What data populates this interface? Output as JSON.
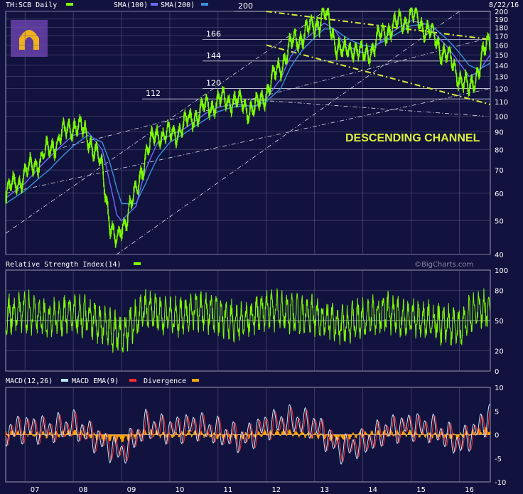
{
  "header": {
    "ticker": "TH:SCB Daily",
    "sma100": "SMA(100)",
    "sma200": "SMA(200)",
    "date": "8/22/16"
  },
  "rsi_label": "Relative Strength Index(14)",
  "macd_labels": {
    "macd": "MACD(12,26)",
    "ema": "MACD EMA(9)",
    "div": "Divergence"
  },
  "watermark": "©BigCharts.com",
  "annotation": "DESCENDING CHANNEL",
  "colors": {
    "bg": "#12123e",
    "price": "#7cfc00",
    "sma100": "#6a6cff",
    "sma200": "#3a8fe0",
    "rsi": "#7cfc00",
    "macd": "#b9e8ff",
    "ema": "#ff2a2a",
    "div": "#ffa500",
    "channel": "#dcee3a"
  },
  "chart_data": [
    {
      "type": "line",
      "title": "TH:SCB Daily",
      "x": [
        2006.6,
        2007,
        2007.5,
        2008,
        2008.3,
        2008.6,
        2008.75,
        2008.9,
        2009,
        2009.3,
        2009.5,
        2009.75,
        2010,
        2010.3,
        2010.5,
        2010.75,
        2011,
        2011.3,
        2011.5,
        2011.75,
        2012,
        2012.3,
        2012.5,
        2012.75,
        2013,
        2013.2,
        2013.4,
        2013.6,
        2013.8,
        2014,
        2014.2,
        2014.5,
        2014.75,
        2015,
        2015.3,
        2015.5,
        2015.75,
        2016,
        2016.2,
        2016.4,
        2016.64
      ],
      "xticks": [
        "07",
        "08",
        "09",
        "10",
        "11",
        "12",
        "13",
        "14",
        "15",
        "16"
      ],
      "series": [
        {
          "name": "TH:SCB Daily",
          "values": [
            60,
            68,
            80,
            95,
            88,
            70,
            50,
            42,
            48,
            60,
            78,
            90,
            88,
            94,
            100,
            106,
            110,
            112,
            108,
            104,
            118,
            140,
            160,
            172,
            182,
            198,
            168,
            150,
            160,
            148,
            158,
            178,
            185,
            195,
            180,
            165,
            148,
            130,
            118,
            138,
            168
          ]
        },
        {
          "name": "SMA(100)",
          "values": [
            58,
            64,
            76,
            88,
            90,
            80,
            65,
            52,
            50,
            55,
            70,
            84,
            88,
            92,
            96,
            102,
            106,
            108,
            108,
            106,
            112,
            128,
            148,
            164,
            175,
            185,
            178,
            162,
            156,
            152,
            156,
            170,
            180,
            188,
            184,
            172,
            158,
            142,
            130,
            134,
            150
          ]
        },
        {
          "name": "SMA(200)",
          "values": [
            56,
            61,
            70,
            82,
            88,
            84,
            74,
            62,
            56,
            56,
            64,
            76,
            84,
            89,
            93,
            98,
            103,
            106,
            107,
            107,
            110,
            120,
            138,
            155,
            168,
            178,
            178,
            170,
            164,
            160,
            158,
            166,
            174,
            182,
            184,
            178,
            166,
            152,
            140,
            136,
            142
          ]
        }
      ],
      "yticks": [
        40,
        50,
        60,
        70,
        80,
        90,
        100,
        110,
        120,
        130,
        140,
        150,
        160,
        170,
        180,
        190,
        200
      ],
      "ylim": [
        40,
        200
      ],
      "yscale": "log",
      "levels": [
        200,
        166,
        144,
        120,
        112
      ]
    },
    {
      "type": "line",
      "title": "Relative Strength Index(14)",
      "x": [
        2006.6,
        2007,
        2007.5,
        2008,
        2008.5,
        2009,
        2009.5,
        2010,
        2010.5,
        2011,
        2011.5,
        2012,
        2012.5,
        2013,
        2013.5,
        2014,
        2014.5,
        2015,
        2015.5,
        2016,
        2016.3,
        2016.64
      ],
      "series": [
        {
          "name": "Relative Strength Index(14)",
          "values": [
            55,
            60,
            50,
            58,
            48,
            35,
            62,
            52,
            60,
            55,
            48,
            62,
            58,
            55,
            45,
            52,
            58,
            50,
            48,
            42,
            60,
            62
          ]
        }
      ],
      "yticks": [
        0,
        20,
        50,
        80,
        100
      ],
      "ylim": [
        0,
        100
      ]
    },
    {
      "type": "line",
      "title": "MACD(12,26)",
      "x": [
        2006.6,
        2007,
        2007.5,
        2008,
        2008.5,
        2009,
        2009.5,
        2010,
        2010.5,
        2011,
        2011.5,
        2012,
        2012.5,
        2013,
        2013.5,
        2014,
        2014.5,
        2015,
        2015.5,
        2016,
        2016.3,
        2016.64
      ],
      "series": [
        {
          "name": "MACD(12,26)",
          "values": [
            0.5,
            1.5,
            1,
            2,
            -1,
            -4,
            2,
            1,
            2,
            0.5,
            -1,
            2,
            3,
            2,
            -3,
            -2,
            1,
            2,
            1,
            -2,
            0.5,
            4
          ]
        },
        {
          "name": "MACD EMA(9)",
          "values": [
            0.3,
            1.2,
            1.1,
            1.5,
            -0.5,
            -3,
            1.5,
            1.2,
            1.7,
            0.8,
            -0.6,
            1.6,
            2.6,
            2.1,
            -2.2,
            -2.1,
            0.7,
            1.8,
            1.1,
            -1.6,
            0.1,
            3
          ]
        },
        {
          "name": "Divergence",
          "values": [
            0.2,
            0.3,
            -0.1,
            0.5,
            -0.5,
            -1,
            0.5,
            -0.2,
            0.3,
            -0.3,
            -0.4,
            0.4,
            0.4,
            -0.1,
            -0.8,
            0.1,
            0.3,
            0.2,
            -0.1,
            -0.4,
            0.4,
            1
          ]
        }
      ],
      "yticks": [
        -10,
        -5,
        0,
        5,
        10
      ],
      "ylim": [
        -10,
        10
      ]
    }
  ]
}
